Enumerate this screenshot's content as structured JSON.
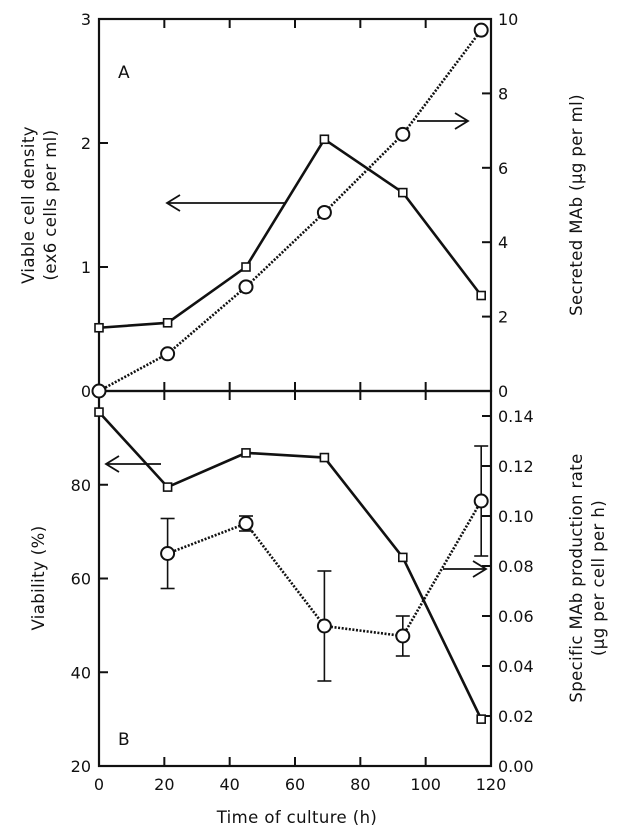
{
  "chart_data": [
    {
      "type": "line",
      "panel_label": "A",
      "x": [
        0,
        21,
        45,
        69,
        93,
        117
      ],
      "xlim": [
        0,
        120
      ],
      "series": [
        {
          "name": "Viable cell density",
          "marker": "square",
          "axis": "left",
          "x": [
            0,
            21,
            45,
            69,
            93,
            117
          ],
          "values": [
            0.51,
            0.55,
            1.0,
            2.03,
            1.6,
            0.77
          ]
        },
        {
          "name": "Secreted MAb",
          "marker": "circle",
          "axis": "right",
          "x": [
            0,
            21,
            45,
            69,
            93,
            117
          ],
          "values": [
            0.0,
            1.0,
            2.8,
            4.8,
            6.9,
            9.7
          ]
        }
      ],
      "ylabel": [
        "Viable cell density",
        "(ex6 cells per ml)"
      ],
      "ylim": [
        0,
        3
      ],
      "yticks": [
        "0",
        "1",
        "2",
        "3"
      ],
      "y2label": "Secreted MAb (μg per ml)",
      "y2lim": [
        0,
        10
      ],
      "y2ticks": [
        "0",
        "2",
        "4",
        "6",
        "8",
        "10"
      ]
    },
    {
      "type": "line",
      "panel_label": "B",
      "x": [
        0,
        21,
        45,
        69,
        93,
        117
      ],
      "xlim": [
        0,
        120
      ],
      "xticks": [
        "0",
        "20",
        "40",
        "60",
        "80",
        "100",
        "120"
      ],
      "xlabel": "Time of culture (h)",
      "series": [
        {
          "name": "Viability",
          "marker": "square",
          "axis": "left",
          "x": [
            0,
            21,
            45,
            69,
            93,
            117
          ],
          "values": [
            95.5,
            79.5,
            86.8,
            85.8,
            64.5,
            30.0
          ]
        },
        {
          "name": "Specific MAb production rate",
          "marker": "circle",
          "axis": "right",
          "x": [
            21,
            45,
            69,
            93,
            117
          ],
          "values": [
            0.085,
            0.097,
            0.056,
            0.052,
            0.106
          ],
          "errors": [
            0.014,
            0.003,
            0.022,
            0.008,
            0.022
          ]
        }
      ],
      "ylabel": "Viability (%)",
      "ylim": [
        20,
        100
      ],
      "yticks": [
        "20",
        "40",
        "60",
        "80"
      ],
      "y2label": [
        "Specific MAb production rate",
        "(μg per cell per h)"
      ],
      "y2lim": [
        0,
        0.15
      ],
      "y2ticks": [
        "0.00",
        "0.02",
        "0.04",
        "0.06",
        "0.08",
        "0.10",
        "0.12",
        "0.14"
      ]
    }
  ]
}
